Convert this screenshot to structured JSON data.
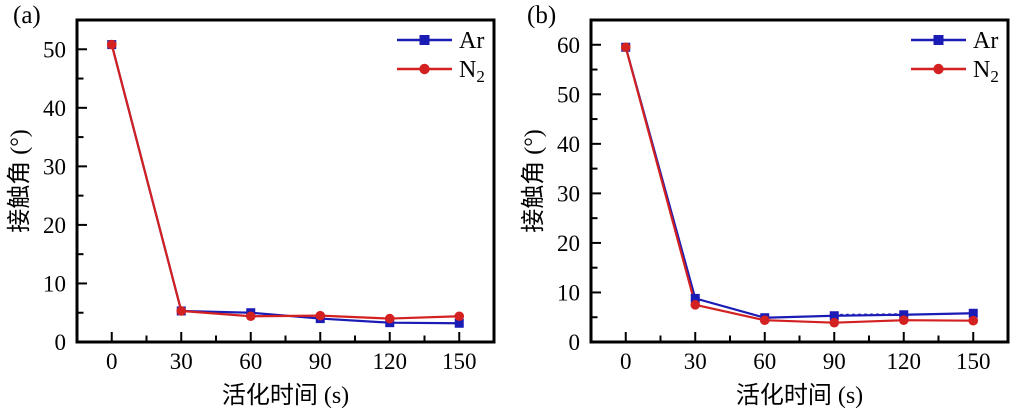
{
  "figure_colors": {
    "ar_blue": "#1b1bb5",
    "n2_red": "#d32020",
    "axis_black": "#000000",
    "background": "#ffffff"
  },
  "chart_data": [
    {
      "type": "line",
      "panel_tag": "(a)",
      "title": "",
      "xlabel": "活化时间 (s)",
      "ylabel": "接触角 (°)",
      "x": [
        0,
        30,
        60,
        90,
        120,
        150
      ],
      "series": [
        {
          "name": "Ar",
          "display": {
            "base": "Ar",
            "sub": ""
          },
          "marker": "square",
          "color": "#1b1bb5",
          "values": [
            50.8,
            5.3,
            5.0,
            4.0,
            3.3,
            3.2
          ]
        },
        {
          "name": "N2",
          "display": {
            "base": "N",
            "sub": "2"
          },
          "marker": "circle",
          "color": "#d32020",
          "values": [
            50.8,
            5.3,
            4.4,
            4.5,
            4.0,
            4.4
          ]
        }
      ],
      "xlim": [
        -15,
        165
      ],
      "ylim": [
        0,
        55
      ],
      "x_major_ticks": [
        0,
        30,
        60,
        90,
        120,
        150
      ],
      "y_major_ticks": [
        0,
        10,
        20,
        30,
        40,
        50
      ],
      "x_minor_interval": 15,
      "y_minor_interval": 5,
      "grid": false,
      "legend_position": "top-right",
      "annotations": []
    },
    {
      "type": "line",
      "panel_tag": "(b)",
      "title": "",
      "xlabel": "活化时间 (s)",
      "ylabel": "接触角 (°)",
      "x": [
        0,
        30,
        60,
        90,
        120,
        150
      ],
      "series": [
        {
          "name": "Ar",
          "display": {
            "base": "Ar",
            "sub": ""
          },
          "marker": "square",
          "color": "#1b1bb5",
          "values": [
            59.5,
            8.8,
            4.9,
            5.3,
            5.5,
            5.8
          ]
        },
        {
          "name": "N2",
          "display": {
            "base": "N",
            "sub": "2"
          },
          "marker": "circle",
          "color": "#d32020",
          "values": [
            59.5,
            7.5,
            4.4,
            3.9,
            4.4,
            4.3
          ]
        }
      ],
      "xlim": [
        -15,
        165
      ],
      "ylim": [
        0,
        65
      ],
      "x_major_ticks": [
        0,
        30,
        60,
        90,
        120,
        150
      ],
      "y_major_ticks": [
        0,
        10,
        20,
        30,
        40,
        50,
        60
      ],
      "x_minor_interval": 15,
      "y_minor_interval": 5,
      "grid": false,
      "legend_position": "top-right",
      "annotations": [
        {
          "type": "dotted-segment",
          "x": [
            90,
            120
          ],
          "y": [
            5.45,
            5.6
          ],
          "color": "#1b1bb5"
        }
      ]
    }
  ]
}
